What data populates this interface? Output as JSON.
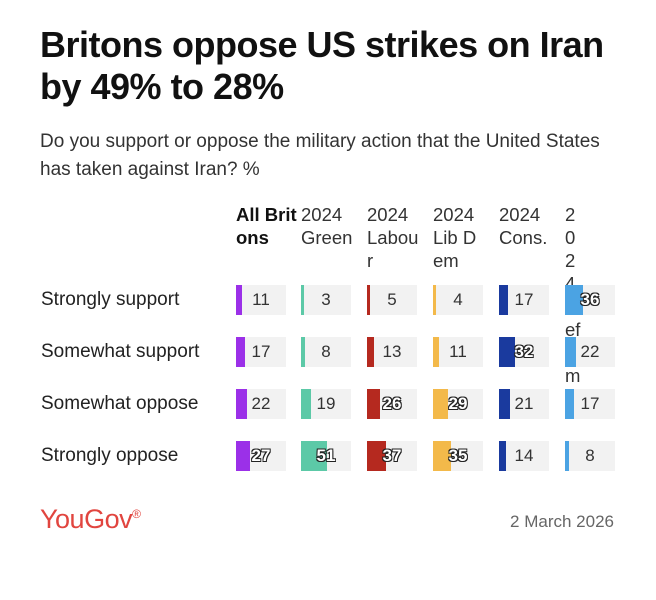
{
  "header": {
    "title": "Britons oppose US strikes on Iran by 49% to 28%",
    "subtitle": "Do you support or oppose the military action that the United States has taken against Iran? %"
  },
  "footer": {
    "logo": "YouGov",
    "logo_mark": "®",
    "date": "2 March 2026"
  },
  "chart_data": {
    "type": "table",
    "title": "Britons oppose US strikes on Iran by 49% to 28%",
    "subtitle": "Do you support or oppose the military action that the United States has taken against Iran? %",
    "value_max": 100,
    "categories": [
      "Strongly support",
      "Somewhat support",
      "Somewhat oppose",
      "Strongly oppose"
    ],
    "columns": [
      {
        "name": "All Britons",
        "color": "#9b30e8",
        "bold": true,
        "values": [
          11,
          17,
          22,
          27
        ]
      },
      {
        "name": "2024 Green",
        "color": "#5cc9a7",
        "bold": false,
        "values": [
          3,
          8,
          19,
          51
        ]
      },
      {
        "name": "2024 Labour",
        "color": "#b5291f",
        "bold": false,
        "values": [
          5,
          13,
          26,
          37
        ]
      },
      {
        "name": "2024 Lib Dem",
        "color": "#f3b94a",
        "bold": false,
        "values": [
          4,
          11,
          29,
          35
        ]
      },
      {
        "name": "2024 Cons.",
        "color": "#1a3a9e",
        "bold": false,
        "values": [
          17,
          32,
          21,
          14
        ]
      },
      {
        "name": "2024 Reform",
        "color": "#4ba3e3",
        "bold": false,
        "values": [
          36,
          22,
          17,
          8
        ]
      }
    ]
  }
}
